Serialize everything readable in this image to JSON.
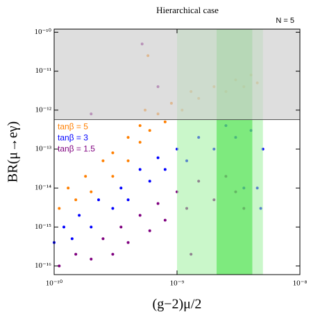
{
  "chart_data": {
    "type": "scatter",
    "title": "Hierarchical case",
    "annotation": "N = 5",
    "xlabel": "(g−2)μ/2",
    "ylabel": "BR(μ→eγ)",
    "xscale": "log",
    "yscale": "log",
    "xlim": [
      1e-10,
      1e-08
    ],
    "ylim": [
      6e-17,
      1.2e-10
    ],
    "xticks": [
      {
        "value": 1e-10,
        "label": "10⁻¹⁰"
      },
      {
        "value": 1e-09,
        "label": "10⁻⁹"
      },
      {
        "value": 1e-08,
        "label": "10⁻⁸"
      }
    ],
    "yticks": [
      {
        "value": 1e-16,
        "label": "10⁻¹⁶"
      },
      {
        "value": 1e-15,
        "label": "10⁻¹⁵"
      },
      {
        "value": 1e-14,
        "label": "10⁻¹⁴"
      },
      {
        "value": 1e-13,
        "label": "10⁻¹³"
      },
      {
        "value": 1e-12,
        "label": "10⁻¹²"
      },
      {
        "value": 1e-11,
        "label": "10⁻¹¹"
      },
      {
        "value": 1e-10,
        "label": "10⁻¹⁰"
      }
    ],
    "bands": [
      {
        "xlim": [
          1e-09,
          5e-09
        ],
        "color": "#9ef09e"
      },
      {
        "xlim": [
          2.1e-09,
          4.1e-09
        ],
        "color": "#3fe03f"
      }
    ],
    "excluded_ymin": 5.7e-13,
    "excluded_color": "#d0d0d0",
    "series": [
      {
        "name": "tanβ = 5",
        "color": "#ff7f00",
        "x": [
          1.1e-10,
          1.3e-10,
          1.5e-10,
          1.8e-10,
          2e-10,
          2.5e-10,
          3e-10,
          3e-10,
          4e-10,
          4e-10,
          5e-10,
          5e-10,
          6e-10,
          7e-10,
          8e-10,
          9e-10,
          1.1e-09,
          1.3e-09,
          1.5e-09,
          2e-09,
          2.5e-09,
          3e-09,
          3.5e-09,
          4e-09,
          4.5e-09,
          5.8e-10,
          5.5e-10
        ],
        "values": [
          3e-15,
          1e-14,
          5e-15,
          2e-14,
          8e-15,
          5e-14,
          2e-14,
          8e-14,
          5e-14,
          2e-13,
          1.5e-13,
          4e-13,
          3e-13,
          8e-13,
          5e-13,
          1.5e-12,
          1e-12,
          3e-12,
          2e-12,
          4e-12,
          3e-12,
          6e-12,
          4e-12,
          8e-12,
          5e-12,
          2.5e-11,
          1e-12
        ]
      },
      {
        "name": "tanβ = 3",
        "color": "#0000ff",
        "x": [
          1e-10,
          1.2e-10,
          1.4e-10,
          1.6e-10,
          2e-10,
          2.3e-10,
          3e-10,
          3.5e-10,
          4e-10,
          5e-10,
          6e-10,
          7e-10,
          8e-10,
          1e-09,
          1.2e-09,
          1.5e-09,
          2e-09,
          2.5e-09,
          3e-09,
          4e-09,
          5e-09,
          4.5e-09,
          4.8e-09,
          3.5e-09
        ],
        "values": [
          4e-16,
          1e-15,
          5e-16,
          2e-15,
          1e-15,
          5e-15,
          3e-15,
          1e-14,
          5e-15,
          3e-14,
          1.5e-14,
          6e-14,
          3e-14,
          1e-13,
          5e-14,
          2e-13,
          1e-13,
          4e-13,
          2e-13,
          3e-13,
          1e-13,
          1e-14,
          3e-15,
          1e-14
        ]
      },
      {
        "name": "tanβ = 1.5",
        "color": "#7f007f",
        "x": [
          1.1e-10,
          1.5e-10,
          2e-10,
          2.5e-10,
          3e-10,
          3.5e-10,
          4e-10,
          5e-10,
          6e-10,
          7e-10,
          8e-10,
          1e-09,
          1.2e-09,
          1.5e-09,
          2e-09,
          2.5e-09,
          3e-09,
          3.5e-09,
          5.2e-10,
          2e-10,
          7e-10,
          1.3e-09
        ],
        "values": [
          1e-16,
          2e-16,
          1.5e-16,
          5e-16,
          2e-16,
          1e-15,
          4e-16,
          2e-15,
          8e-16,
          4e-15,
          1.5e-15,
          8e-15,
          3e-15,
          1.5e-14,
          5e-15,
          2e-14,
          8e-15,
          3e-15,
          5e-11,
          8e-13,
          4e-12,
          2e-16
        ]
      }
    ]
  }
}
